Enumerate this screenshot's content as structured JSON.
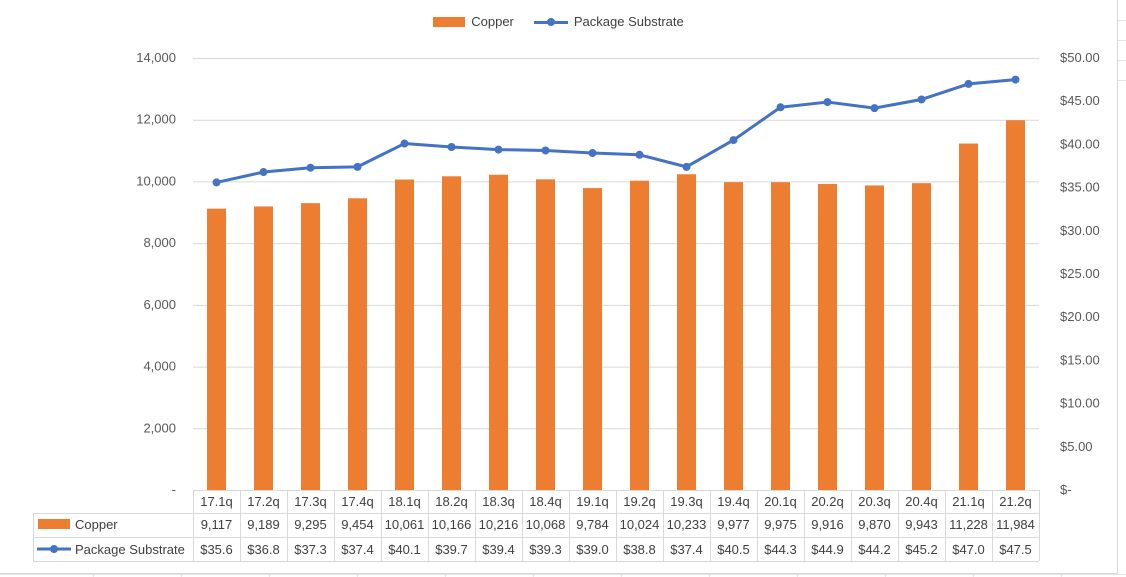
{
  "colors": {
    "copper": "#ED7D31",
    "substrate": "#4472C4",
    "axis_text": "#595959",
    "grid": "#D9D9D9"
  },
  "legend": {
    "copper_label": "Copper",
    "substrate_label": "Package Substrate"
  },
  "chart_data": {
    "type": "bar+line",
    "title": "",
    "categories": [
      "17.1q",
      "17.2q",
      "17.3q",
      "17.4q",
      "18.1q",
      "18.2q",
      "18.3q",
      "18.4q",
      "19.1q",
      "19.2q",
      "19.3q",
      "19.4q",
      "20.1q",
      "20.2q",
      "20.3q",
      "20.4q",
      "21.1q",
      "21.2q"
    ],
    "series": [
      {
        "name": "Copper",
        "type": "bar",
        "axis": "left",
        "values": [
          9117,
          9189,
          9295,
          9454,
          10061,
          10166,
          10216,
          10068,
          9784,
          10024,
          10233,
          9977,
          9975,
          9916,
          9870,
          9943,
          11228,
          11984
        ],
        "labels": [
          "9,117",
          "9,189",
          "9,295",
          "9,454",
          "10,061",
          "10,166",
          "10,216",
          "10,068",
          "9,784",
          "10,024",
          "10,233",
          "9,977",
          "9,975",
          "9,916",
          "9,870",
          "9,943",
          "11,228",
          "11,984"
        ]
      },
      {
        "name": "Package Substrate",
        "type": "line",
        "axis": "right",
        "values": [
          35.6,
          36.8,
          37.3,
          37.4,
          40.1,
          39.7,
          39.4,
          39.3,
          39.0,
          38.8,
          37.4,
          40.5,
          44.3,
          44.9,
          44.2,
          45.2,
          47.0,
          47.5
        ],
        "labels": [
          "$35.6",
          "$36.8",
          "$37.3",
          "$37.4",
          "$40.1",
          "$39.7",
          "$39.4",
          "$39.3",
          "$39.0",
          "$38.8",
          "$37.4",
          "$40.5",
          "$44.3",
          "$44.9",
          "$44.2",
          "$45.2",
          "$47.0",
          "$47.5"
        ]
      }
    ],
    "left_axis": {
      "ylim": [
        0,
        14000
      ],
      "ticks": [
        0,
        2000,
        4000,
        6000,
        8000,
        10000,
        12000,
        14000
      ],
      "tick_labels": [
        "-",
        "2,000",
        "4,000",
        "6,000",
        "8,000",
        "10,000",
        "12,000",
        "14,000"
      ]
    },
    "right_axis": {
      "ylim": [
        0,
        50
      ],
      "ticks": [
        0,
        5,
        10,
        15,
        20,
        25,
        30,
        35,
        40,
        45,
        50
      ],
      "tick_labels": [
        "$-",
        "$5.00",
        "$10.00",
        "$15.00",
        "$20.00",
        "$25.00",
        "$30.00",
        "$35.00",
        "$40.00",
        "$45.00",
        "$50.00"
      ]
    },
    "grid": true,
    "legend_position": "top-center",
    "data_table": true
  }
}
